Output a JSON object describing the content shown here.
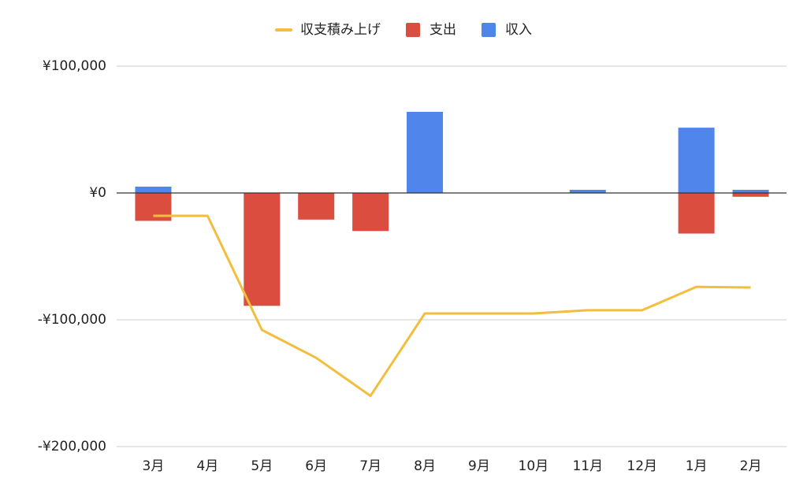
{
  "chart_data": {
    "type": "combo",
    "categories": [
      "3月",
      "4月",
      "5月",
      "6月",
      "7月",
      "8月",
      "9月",
      "10月",
      "11月",
      "12月",
      "1月",
      "2月"
    ],
    "series": [
      {
        "name": "収支積み上げ",
        "type": "line",
        "color": "#f2be3c",
        "values": [
          -18000,
          -18000,
          -108000,
          -130000,
          -160000,
          -95000,
          -95000,
          -95000,
          -92500,
          -92500,
          -74000,
          -74500
        ]
      },
      {
        "name": "支出",
        "type": "bar",
        "color": "#db4e3f",
        "values": [
          -22000,
          0,
          -89000,
          -21000,
          -30000,
          0,
          0,
          0,
          0,
          0,
          -32000,
          -3000
        ]
      },
      {
        "name": "収入",
        "type": "bar",
        "color": "#5085ec",
        "values": [
          5000,
          0,
          0,
          0,
          0,
          64000,
          0,
          0,
          2500,
          0,
          51500,
          2500
        ]
      }
    ],
    "ylim": [
      -200000,
      100000
    ],
    "yticks": [
      {
        "value": -200000,
        "label": "-¥200,000"
      },
      {
        "value": -100000,
        "label": "-¥100,000"
      },
      {
        "value": 0,
        "label": "¥0"
      },
      {
        "value": 100000,
        "label": "¥100,000"
      }
    ],
    "grid": true,
    "legend": "top"
  }
}
